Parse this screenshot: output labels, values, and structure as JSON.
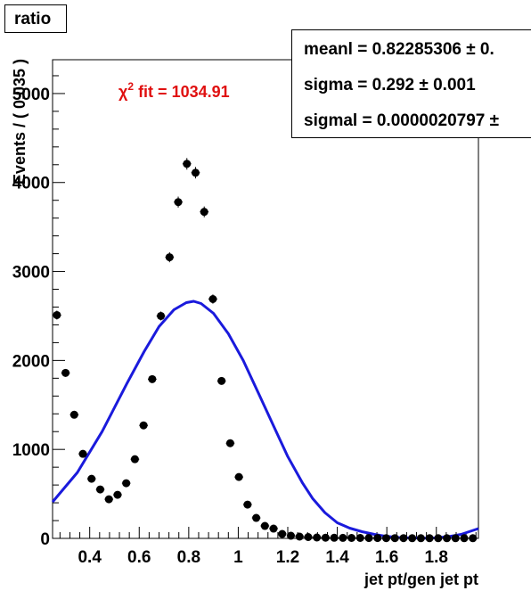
{
  "title": "ratio",
  "chi2_label": {
    "symbol": "χ",
    "superscript": "2",
    "text": " fit = 1034.91"
  },
  "stats": [
    {
      "name": "meanl",
      "value": "0.82285306",
      "pm": "±",
      "error": "0.",
      "line": "meanl =  0.82285306 ± 0."
    },
    {
      "name": "sigma",
      "value": "0.292",
      "pm": "±",
      "error": "0.001",
      "line": "sigma =  0.292 ± 0.001"
    },
    {
      "name": "sigmal",
      "value": "0.0000020797",
      "pm": "±",
      "error": "",
      "line": "sigmal =  0.0000020797 ±"
    }
  ],
  "chart_data": {
    "type": "scatter",
    "xlabel": "jet pt/gen jet pt",
    "ylabel": "Events / ( 0.035 )",
    "xlim": [
      0.25,
      1.97
    ],
    "ylim": [
      0,
      5380
    ],
    "xticks": [
      "0.4",
      "0.6",
      "0.8",
      "1",
      "1.2",
      "1.4",
      "1.6",
      "1.8"
    ],
    "xtick_values": [
      0.4,
      0.6,
      0.8,
      1.0,
      1.2,
      1.4,
      1.6,
      1.8
    ],
    "yticks": [
      "0",
      "1000",
      "2000",
      "3000",
      "4000",
      "5000"
    ],
    "ytick_values": [
      0,
      1000,
      2000,
      3000,
      4000,
      5000
    ],
    "grid": false,
    "bin_width": 0.035,
    "series": [
      {
        "kind": "points",
        "color": "#000000",
        "x": [
          0.2675,
          0.3025,
          0.3375,
          0.3725,
          0.4075,
          0.4425,
          0.4775,
          0.5125,
          0.5475,
          0.5825,
          0.6175,
          0.6525,
          0.6875,
          0.7225,
          0.7575,
          0.7925,
          0.8275,
          0.8625,
          0.8975,
          0.9325,
          0.9675,
          1.0025,
          1.0375,
          1.0725,
          1.1075,
          1.1425,
          1.1775,
          1.2125,
          1.2475,
          1.2825,
          1.3175,
          1.3525,
          1.3875,
          1.4225,
          1.4575,
          1.4925,
          1.5275,
          1.5625,
          1.5975,
          1.6325,
          1.6675,
          1.7025,
          1.7375,
          1.7725,
          1.8075,
          1.8425,
          1.8775,
          1.9125,
          1.9475
        ],
        "y": [
          2510,
          1860,
          1390,
          950,
          670,
          550,
          440,
          490,
          620,
          890,
          1270,
          1790,
          2500,
          3160,
          3780,
          4210,
          4110,
          3670,
          2690,
          1770,
          1070,
          690,
          380,
          230,
          140,
          110,
          50,
          30,
          20,
          15,
          10,
          8,
          7,
          6,
          5,
          5,
          4,
          4,
          3,
          3,
          3,
          2,
          2,
          2,
          2,
          2,
          2,
          2,
          2
        ]
      },
      {
        "kind": "curve",
        "color": "#1a1adc",
        "x": [
          0.25,
          0.35,
          0.45,
          0.55,
          0.62,
          0.68,
          0.74,
          0.79,
          0.82,
          0.85,
          0.9,
          0.96,
          1.02,
          1.08,
          1.15,
          1.2,
          1.26,
          1.3,
          1.35,
          1.4,
          1.45,
          1.5,
          1.55,
          1.6,
          1.65,
          1.7,
          1.75,
          1.8,
          1.85,
          1.9,
          1.97
        ],
        "y": [
          410,
          740,
          1200,
          1740,
          2100,
          2380,
          2570,
          2650,
          2665,
          2640,
          2530,
          2300,
          2000,
          1640,
          1220,
          920,
          620,
          450,
          290,
          175,
          115,
          75,
          45,
          22,
          10,
          5,
          3,
          6,
          20,
          45,
          110
        ]
      }
    ]
  }
}
